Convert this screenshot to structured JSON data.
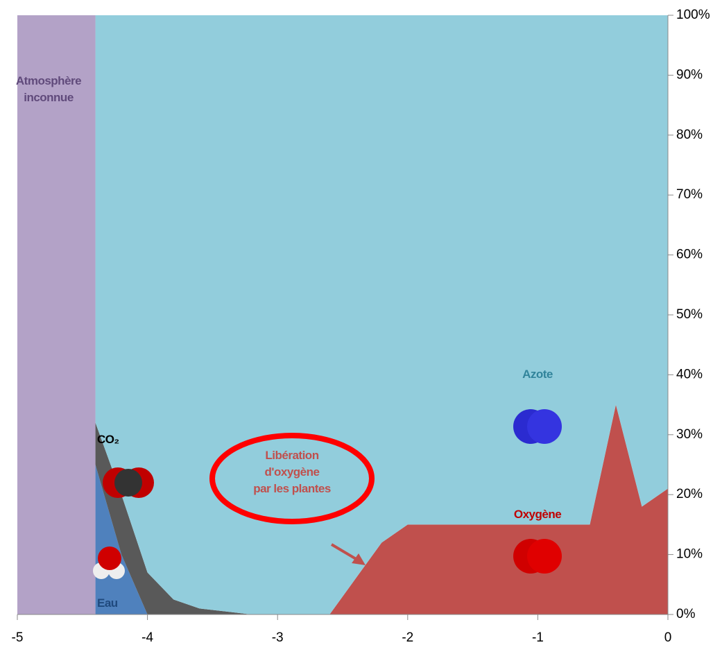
{
  "chart_data": {
    "type": "stacked_area",
    "x": [
      -5,
      -4.4,
      -4.4,
      -4.2,
      -4.0,
      -3.8,
      -3.6,
      -3.4,
      -3.2,
      -3.0,
      -2.6,
      -2.4,
      -2.2,
      -2.0,
      -0.6,
      -0.4,
      -0.2,
      0
    ],
    "series": [
      {
        "name": "Eau",
        "color": "#4f81bd",
        "label_color": "#1f497d",
        "values": [
          0,
          0,
          25,
          10,
          0,
          0,
          0,
          0,
          0,
          0,
          0,
          0,
          0,
          0,
          0,
          0,
          0,
          0
        ]
      },
      {
        "name": "CO₂",
        "color": "#595959",
        "label_color": "#000000",
        "values": [
          0,
          0,
          7,
          10,
          7,
          2.5,
          1,
          0.5,
          0,
          0,
          0,
          0,
          0,
          0,
          0,
          0,
          0,
          0
        ]
      },
      {
        "name": "Oxygène",
        "color": "#c0504d",
        "label_color": "#c00000",
        "values": [
          0,
          0,
          0,
          0,
          0,
          0,
          0,
          0,
          0,
          0,
          0,
          6,
          12,
          15,
          15,
          35,
          18,
          21
        ]
      },
      {
        "name": "Azote",
        "color": "#92cddc",
        "label_color": "#31849b",
        "values": [
          0,
          0,
          68,
          80,
          93,
          97.5,
          99,
          99.5,
          100,
          100,
          100,
          94,
          88,
          85,
          85,
          65,
          82,
          79
        ]
      },
      {
        "name": "Atmosphère inconnue",
        "color": "#b3a2c7",
        "label_color": "#604a7b",
        "values": [
          100,
          100,
          0,
          0,
          0,
          0,
          0,
          0,
          0,
          0,
          0,
          0,
          0,
          0,
          0,
          0,
          0,
          0
        ]
      }
    ],
    "xlim": [
      -5,
      0
    ],
    "xticks": [
      -5,
      -4,
      -3,
      -2,
      -1,
      0
    ],
    "ylim": [
      0,
      100
    ],
    "yticks": [
      {
        "value": 0,
        "label": "0%"
      },
      {
        "value": 10,
        "label": "10%"
      },
      {
        "value": 20,
        "label": "20%"
      },
      {
        "value": 30,
        "label": "30%"
      },
      {
        "value": 40,
        "label": "40%"
      },
      {
        "value": 50,
        "label": "50%"
      },
      {
        "value": 60,
        "label": "60%"
      },
      {
        "value": 70,
        "label": "70%"
      },
      {
        "value": 80,
        "label": "80%"
      },
      {
        "value": 90,
        "label": "90%"
      },
      {
        "value": 100,
        "label": "100%"
      }
    ],
    "annotation": [
      "Libération",
      "d'oxygène",
      "par les plantes"
    ]
  }
}
